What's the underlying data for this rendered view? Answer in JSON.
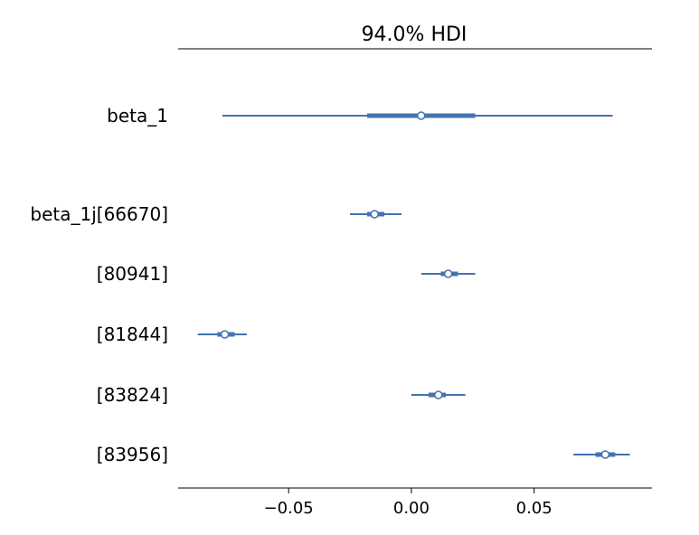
{
  "chart_data": {
    "type": "forest",
    "title": "94.0% HDI",
    "xlim": [
      -0.095,
      0.098
    ],
    "xticks": [
      -0.05,
      0.0,
      0.05
    ],
    "xtick_labels": [
      "−0.05",
      "0.00",
      "0.05"
    ],
    "grid": false,
    "series_color": "#4473b0",
    "rows": [
      {
        "label": "beta_1",
        "hdi": [
          -0.077,
          0.082
        ],
        "iqr": [
          -0.018,
          0.026
        ],
        "median": 0.004
      },
      {
        "label": "beta_1j[66670]",
        "hdi": [
          -0.025,
          -0.004
        ],
        "iqr": [
          -0.018,
          -0.011
        ],
        "median": -0.015
      },
      {
        "label": "[80941]",
        "hdi": [
          0.004,
          0.026
        ],
        "iqr": [
          0.012,
          0.019
        ],
        "median": 0.015
      },
      {
        "label": "[81844]",
        "hdi": [
          -0.087,
          -0.067
        ],
        "iqr": [
          -0.079,
          -0.072
        ],
        "median": -0.076
      },
      {
        "label": "[83824]",
        "hdi": [
          0.0,
          0.022
        ],
        "iqr": [
          0.007,
          0.014
        ],
        "median": 0.011
      },
      {
        "label": "[83956]",
        "hdi": [
          0.066,
          0.089
        ],
        "iqr": [
          0.075,
          0.083
        ],
        "median": 0.079
      }
    ]
  }
}
